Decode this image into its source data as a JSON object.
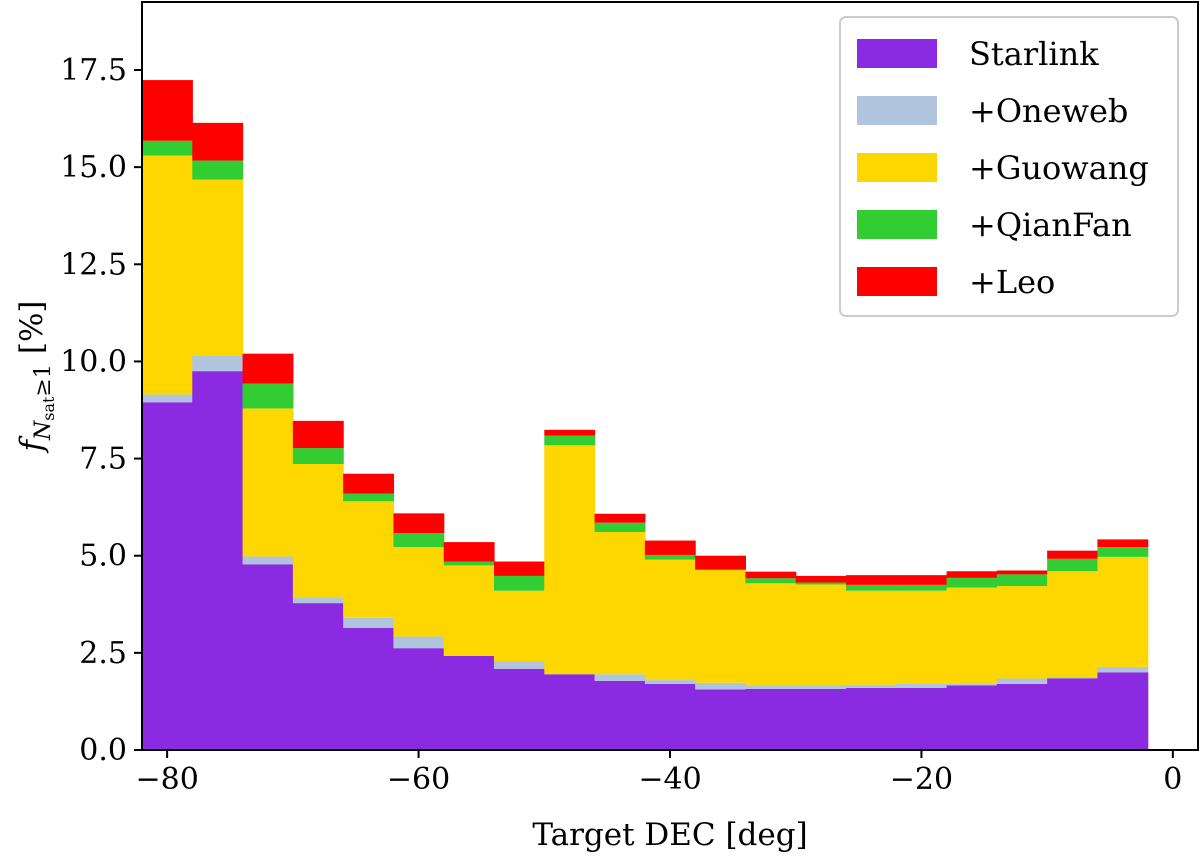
{
  "chart_data": {
    "type": "bar",
    "stacked": true,
    "bin_edges": [
      -82,
      -78,
      -74,
      -70,
      -66,
      -62,
      -58,
      -54,
      -50,
      -46,
      -42,
      -38,
      -34,
      -30,
      -26,
      -22,
      -18,
      -14,
      -10,
      -6,
      -2,
      2
    ],
    "series": [
      {
        "name": "Starlink",
        "color": "#8a2be2",
        "values": [
          8.95,
          9.75,
          4.78,
          3.78,
          3.14,
          2.62,
          2.42,
          2.09,
          1.95,
          1.78,
          1.7,
          1.56,
          1.57,
          1.57,
          1.6,
          1.6,
          1.66,
          1.7,
          1.84,
          2.0
        ]
      },
      {
        "name": "+Oneweb",
        "color": "#b0c4de",
        "values": [
          0.2,
          0.4,
          0.2,
          0.15,
          0.26,
          0.3,
          0.0,
          0.2,
          0.0,
          0.17,
          0.1,
          0.17,
          0.1,
          0.1,
          0.08,
          0.12,
          0.04,
          0.14,
          0.04,
          0.14
        ]
      },
      {
        "name": "+Guowang",
        "color": "#ffd700",
        "values": [
          6.15,
          4.53,
          3.81,
          3.43,
          3.0,
          2.3,
          2.33,
          1.81,
          5.89,
          3.66,
          3.1,
          2.91,
          2.62,
          2.59,
          2.42,
          2.38,
          2.48,
          2.38,
          2.72,
          2.83
        ]
      },
      {
        "name": "+QianFan",
        "color": "#32cd32",
        "values": [
          0.38,
          0.49,
          0.64,
          0.41,
          0.2,
          0.36,
          0.1,
          0.38,
          0.25,
          0.24,
          0.12,
          0.0,
          0.13,
          0.05,
          0.15,
          0.15,
          0.25,
          0.3,
          0.32,
          0.25
        ]
      },
      {
        "name": "+Leo",
        "color": "#ff0000",
        "values": [
          1.56,
          0.97,
          0.77,
          0.7,
          0.51,
          0.51,
          0.5,
          0.37,
          0.15,
          0.23,
          0.37,
          0.36,
          0.17,
          0.17,
          0.25,
          0.25,
          0.17,
          0.1,
          0.21,
          0.2
        ]
      }
    ],
    "xlabel": "Target DEC [deg]",
    "ylabel": "f",
    "ylabel_subscript": "N",
    "ylabel_subsubscript": "sat",
    "ylabel_condition": "≥1",
    "ylabel_unit": "[%]",
    "xlim": [
      -82,
      2
    ],
    "ylim": [
      0,
      19.25
    ],
    "xticks": [
      -80,
      -60,
      -40,
      -20,
      0
    ],
    "xtick_labels": [
      "−80",
      "−60",
      "−40",
      "−20",
      "0"
    ],
    "yticks": [
      0,
      2.5,
      5,
      7.5,
      10,
      12.5,
      15,
      17.5
    ],
    "ytick_labels": [
      "0.0",
      "2.5",
      "5.0",
      "7.5",
      "10.0",
      "12.5",
      "15.0",
      "17.5"
    ],
    "legend_position": "top-right",
    "grid": false
  }
}
